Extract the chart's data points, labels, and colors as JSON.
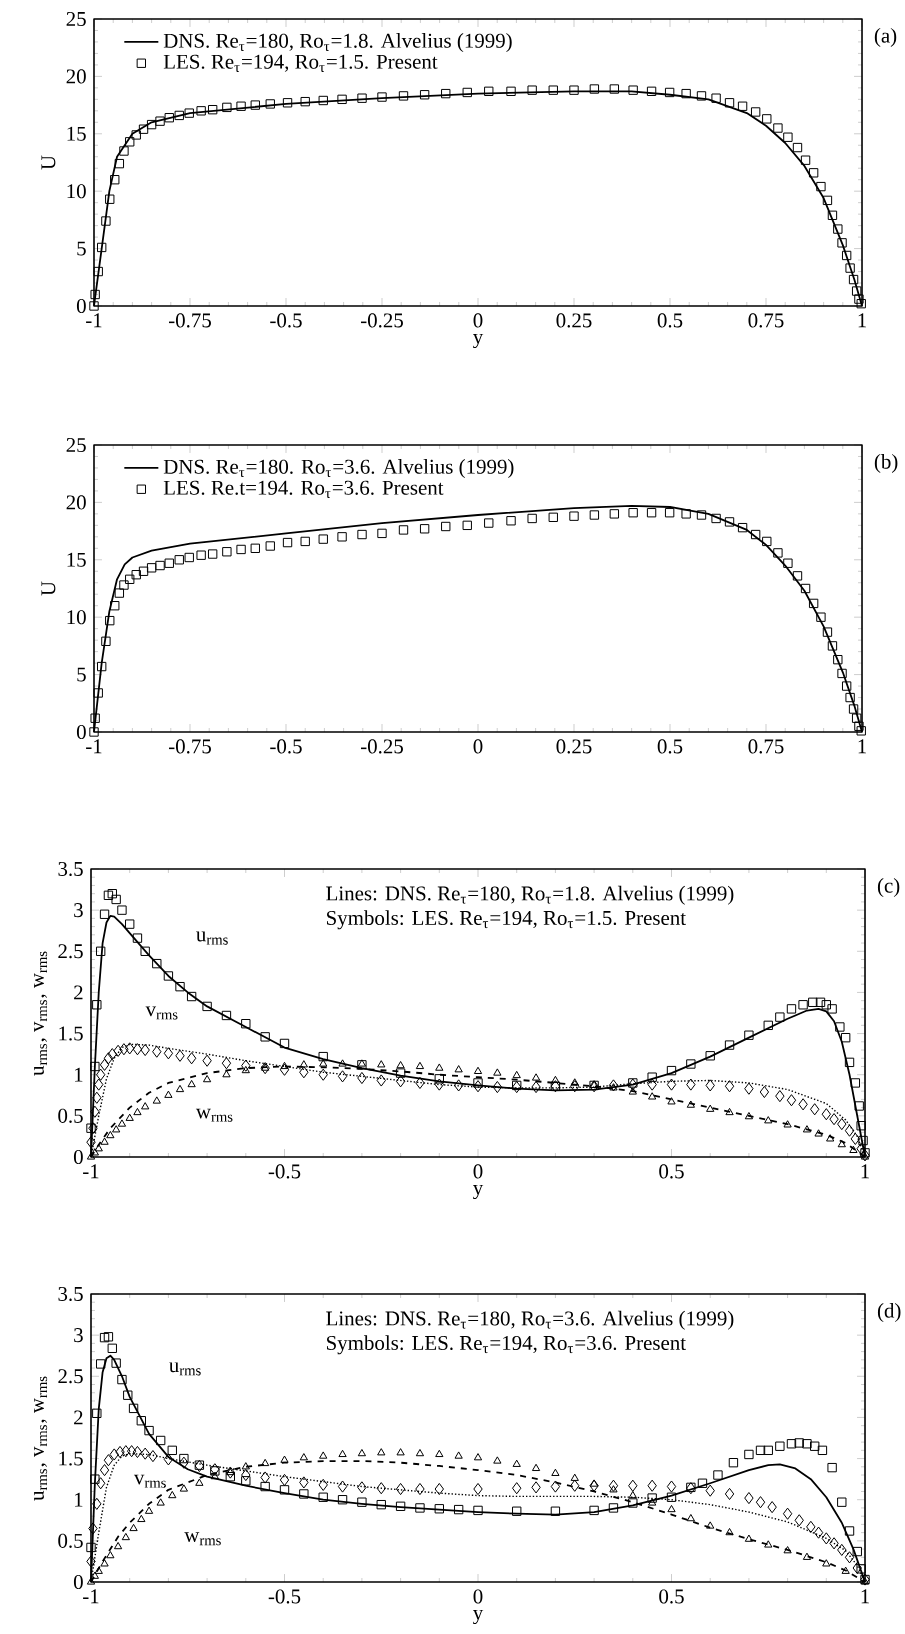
{
  "chart_data": [
    {
      "type": "line",
      "title": "(a)",
      "xlabel": "y",
      "ylabel": "U",
      "xlim": [
        -1,
        1
      ],
      "ylim": [
        0,
        25
      ],
      "xticks": [
        -1,
        -0.75,
        -0.5,
        -0.25,
        0,
        0.25,
        0.5,
        0.75,
        1
      ],
      "yticks": [
        0,
        5,
        10,
        15,
        20,
        25
      ],
      "legend": "top left",
      "series": [
        {
          "name": "DNS. Re$_{τ}$=180,  Ro$_{τ}$=1.8. Alvelius (1999)",
          "type": "line",
          "line_style": "solid",
          "marker": "none",
          "color": "#000000",
          "x": [
            -1,
            -0.98,
            -0.96,
            -0.94,
            -0.9,
            -0.85,
            -0.75,
            -0.5,
            -0.25,
            0,
            0.25,
            0.4,
            0.5,
            0.6,
            0.7,
            0.75,
            0.8,
            0.85,
            0.9,
            0.95,
            0.98,
            1
          ],
          "values": [
            0,
            5,
            10,
            13,
            15,
            16,
            16.8,
            17.6,
            18.1,
            18.5,
            18.7,
            18.7,
            18.4,
            18,
            16.8,
            15.7,
            14.2,
            12.2,
            9.4,
            5.3,
            2.3,
            0
          ]
        },
        {
          "name": "LES. Re$_{τ}$=194,  Ro$_{τ}$=1.5. Present",
          "type": "scatter",
          "marker": "square",
          "color": "#000000",
          "x": [
            -1,
            -0.997,
            -0.989,
            -0.98,
            -0.969,
            -0.959,
            -0.946,
            -0.934,
            -0.922,
            -0.907,
            -0.89,
            -0.871,
            -0.85,
            -0.828,
            -0.804,
            -0.778,
            -0.752,
            -0.721,
            -0.691,
            -0.654,
            -0.617,
            -0.58,
            -0.541,
            -0.496,
            -0.45,
            -0.403,
            -0.354,
            -0.302,
            -0.25,
            -0.194,
            -0.139,
            -0.084,
            -0.028,
            0.028,
            0.086,
            0.141,
            0.196,
            0.25,
            0.303,
            0.355,
            0.404,
            0.452,
            0.499,
            0.542,
            0.582,
            0.62,
            0.655,
            0.689,
            0.723,
            0.752,
            0.781,
            0.807,
            0.832,
            0.853,
            0.874,
            0.893,
            0.91,
            0.923,
            0.937,
            0.948,
            0.96,
            0.969,
            0.978,
            0.986,
            0.992,
            0.998
          ],
          "values": [
            0,
            1,
            3,
            5.1,
            7.4,
            9.3,
            11,
            12.4,
            13.5,
            14.3,
            14.9,
            15.4,
            15.8,
            16.1,
            16.4,
            16.6,
            16.8,
            17,
            17.1,
            17.3,
            17.4,
            17.5,
            17.6,
            17.7,
            17.8,
            17.9,
            18,
            18.1,
            18.2,
            18.3,
            18.4,
            18.5,
            18.6,
            18.7,
            18.7,
            18.8,
            18.8,
            18.8,
            18.9,
            18.9,
            18.8,
            18.7,
            18.6,
            18.5,
            18.3,
            18.1,
            17.7,
            17.4,
            16.9,
            16.3,
            15.5,
            14.7,
            13.8,
            12.7,
            11.6,
            10.4,
            9.2,
            7.9,
            6.7,
            5.5,
            4.4,
            3.3,
            2.3,
            1.3,
            0.6,
            0.2
          ]
        }
      ]
    },
    {
      "type": "line",
      "title": "(b)",
      "ylabel": "U",
      "xlim": [
        -1,
        1
      ],
      "ylim": [
        0,
        25
      ],
      "xticks": [
        -1,
        -0.75,
        -0.5,
        -0.25,
        0,
        0.25,
        0.5,
        0.75,
        1
      ],
      "yticks": [
        0,
        5,
        10,
        15,
        20,
        25
      ],
      "legend": "top left",
      "series": [
        {
          "name": "DNS. Re$_{τ}$=180.  Ro$_{τ}$=3.6. Alvelius (1999)",
          "type": "line",
          "line_style": "solid",
          "marker": "none",
          "color": "#000000",
          "x": [
            -1,
            -0.98,
            -0.96,
            -0.94,
            -0.92,
            -0.9,
            -0.85,
            -0.75,
            -0.5,
            -0.25,
            0,
            0.25,
            0.4,
            0.5,
            0.6,
            0.7,
            0.75,
            0.8,
            0.85,
            0.9,
            0.95,
            0.98,
            1
          ],
          "values": [
            0,
            6,
            10.5,
            13.3,
            14.6,
            15.2,
            15.8,
            16.4,
            17.3,
            18.2,
            18.9,
            19.5,
            19.7,
            19.6,
            19,
            17.6,
            16.3,
            14.5,
            12.3,
            9.2,
            5.2,
            2.3,
            0
          ]
        },
        {
          "name": "LES. Re.t=194. Ro$_{τ}$=3.6. Present",
          "type": "scatter",
          "marker": "square",
          "color": "#000000",
          "x": [
            -1,
            -0.997,
            -0.989,
            -0.98,
            -0.969,
            -0.959,
            -0.946,
            -0.934,
            -0.922,
            -0.907,
            -0.89,
            -0.871,
            -0.85,
            -0.828,
            -0.804,
            -0.778,
            -0.752,
            -0.721,
            -0.691,
            -0.654,
            -0.617,
            -0.58,
            -0.541,
            -0.496,
            -0.45,
            -0.403,
            -0.354,
            -0.302,
            -0.25,
            -0.194,
            -0.139,
            -0.084,
            -0.028,
            0.028,
            0.086,
            0.141,
            0.196,
            0.25,
            0.303,
            0.355,
            0.404,
            0.452,
            0.499,
            0.542,
            0.582,
            0.62,
            0.655,
            0.689,
            0.723,
            0.752,
            0.781,
            0.807,
            0.832,
            0.853,
            0.874,
            0.893,
            0.91,
            0.923,
            0.937,
            0.948,
            0.96,
            0.969,
            0.978,
            0.986,
            0.992,
            0.998
          ],
          "values": [
            0,
            1.2,
            3.4,
            5.7,
            7.9,
            9.7,
            11,
            12.1,
            12.8,
            13.3,
            13.7,
            14,
            14.3,
            14.5,
            14.7,
            15,
            15.2,
            15.4,
            15.5,
            15.7,
            15.9,
            16,
            16.2,
            16.5,
            16.6,
            16.8,
            17,
            17.2,
            17.3,
            17.6,
            17.7,
            17.9,
            18,
            18.2,
            18.4,
            18.6,
            18.7,
            18.8,
            18.9,
            19,
            19.1,
            19.1,
            19.1,
            19,
            18.9,
            18.6,
            18.3,
            17.8,
            17.2,
            16.6,
            15.6,
            14.7,
            13.6,
            12.5,
            11.2,
            10,
            8.7,
            7.5,
            6.3,
            5.1,
            4,
            3,
            2,
            1.2,
            0.5,
            0.1
          ]
        }
      ]
    },
    {
      "type": "line",
      "title": "(c)",
      "xlabel": "y",
      "ylabel": "u$_{rms}$, v$_{rms}$, w$_{rms}$",
      "xlim": [
        -1,
        1
      ],
      "ylim": [
        0,
        3.5
      ],
      "xticks": [
        -1,
        -0.5,
        0,
        0.5,
        1
      ],
      "yticks": [
        0,
        0.5,
        1,
        1.5,
        2,
        2.5,
        3,
        3.5
      ],
      "annotations": [
        "Lines: DNS. Re$_{τ}$=180, Ro$_{τ}$=1.8.  Alvelius (1999)",
        "Symbols: LES. Re$_{τ}$=194, Ro$_{τ}$=1.5. Present",
        "u$_{rms}$",
        "v$_{rms}$",
        "w$_{rms}$"
      ],
      "series": [
        {
          "type": "line",
          "line_style": "solid",
          "marker": "none",
          "color": "#000000",
          "x": [
            -1,
            -0.99,
            -0.98,
            -0.97,
            -0.96,
            -0.95,
            -0.94,
            -0.92,
            -0.9,
            -0.85,
            -0.8,
            -0.75,
            -0.7,
            -0.6,
            -0.5,
            -0.4,
            -0.3,
            -0.2,
            -0.1,
            0,
            0.1,
            0.2,
            0.3,
            0.4,
            0.5,
            0.6,
            0.7,
            0.8,
            0.85,
            0.88,
            0.9,
            0.92,
            0.94,
            0.96,
            0.98,
            1
          ],
          "values": [
            0,
            1.1,
            2,
            2.6,
            2.85,
            2.93,
            2.92,
            2.83,
            2.72,
            2.45,
            2.2,
            2,
            1.83,
            1.58,
            1.33,
            1.19,
            1.08,
            0.99,
            0.92,
            0.87,
            0.83,
            0.81,
            0.82,
            0.88,
            1.02,
            1.22,
            1.45,
            1.68,
            1.78,
            1.8,
            1.77,
            1.65,
            1.4,
            1,
            0.5,
            0
          ]
        },
        {
          "type": "line",
          "line_style": "dotted",
          "marker": "none",
          "color": "#000000",
          "x": [
            -1,
            -0.98,
            -0.96,
            -0.94,
            -0.92,
            -0.9,
            -0.85,
            -0.8,
            -0.7,
            -0.6,
            -0.5,
            -0.4,
            -0.3,
            -0.2,
            -0.1,
            0,
            0.1,
            0.2,
            0.3,
            0.4,
            0.5,
            0.6,
            0.7,
            0.8,
            0.9,
            0.95,
            0.98,
            1
          ],
          "values": [
            0,
            0.5,
            0.95,
            1.2,
            1.33,
            1.37,
            1.36,
            1.32,
            1.25,
            1.17,
            1.1,
            1.03,
            0.98,
            0.93,
            0.88,
            0.85,
            0.84,
            0.84,
            0.85,
            0.89,
            0.92,
            0.93,
            0.9,
            0.82,
            0.65,
            0.45,
            0.25,
            0
          ]
        },
        {
          "type": "line",
          "line_style": "dashed",
          "marker": "none",
          "color": "#000000",
          "x": [
            -1,
            -0.98,
            -0.95,
            -0.9,
            -0.85,
            -0.8,
            -0.7,
            -0.6,
            -0.5,
            -0.4,
            -0.3,
            -0.2,
            -0.1,
            0,
            0.1,
            0.2,
            0.3,
            0.4,
            0.5,
            0.6,
            0.7,
            0.8,
            0.9,
            0.95,
            1
          ],
          "values": [
            0,
            0.15,
            0.35,
            0.6,
            0.78,
            0.9,
            1.02,
            1.08,
            1.1,
            1.09,
            1.07,
            1.04,
            1,
            0.97,
            0.94,
            0.9,
            0.86,
            0.8,
            0.7,
            0.6,
            0.5,
            0.4,
            0.27,
            0.17,
            0
          ]
        },
        {
          "type": "scatter",
          "marker": "square",
          "color": "#000000",
          "x": [
            -1,
            -0.99,
            -0.985,
            -0.975,
            -0.965,
            -0.955,
            -0.945,
            -0.935,
            -0.92,
            -0.9,
            -0.88,
            -0.86,
            -0.83,
            -0.8,
            -0.77,
            -0.74,
            -0.7,
            -0.65,
            -0.6,
            -0.55,
            -0.5,
            -0.4,
            -0.3,
            -0.2,
            -0.1,
            0,
            0.1,
            0.2,
            0.3,
            0.4,
            0.45,
            0.5,
            0.55,
            0.6,
            0.65,
            0.7,
            0.75,
            0.78,
            0.81,
            0.84,
            0.865,
            0.885,
            0.9,
            0.915,
            0.935,
            0.95,
            0.96,
            0.975,
            0.985,
            0.99,
            0.995,
            1
          ],
          "values": [
            0.35,
            1.1,
            1.85,
            2.5,
            2.95,
            3.18,
            3.2,
            3.13,
            3,
            2.83,
            2.66,
            2.5,
            2.35,
            2.2,
            2.07,
            1.95,
            1.83,
            1.72,
            1.62,
            1.46,
            1.38,
            1.22,
            1.12,
            1.02,
            0.95,
            0.9,
            0.87,
            0.86,
            0.87,
            0.9,
            0.97,
            1.05,
            1.13,
            1.23,
            1.36,
            1.48,
            1.6,
            1.7,
            1.8,
            1.85,
            1.88,
            1.88,
            1.85,
            1.8,
            1.58,
            1.45,
            1.15,
            0.9,
            0.62,
            0.38,
            0.2,
            0.05
          ]
        },
        {
          "type": "scatter",
          "marker": "diamond",
          "color": "#000000",
          "x": [
            -1,
            -0.995,
            -0.99,
            -0.985,
            -0.98,
            -0.975,
            -0.965,
            -0.955,
            -0.945,
            -0.93,
            -0.915,
            -0.9,
            -0.88,
            -0.86,
            -0.83,
            -0.8,
            -0.77,
            -0.74,
            -0.7,
            -0.65,
            -0.6,
            -0.55,
            -0.5,
            -0.45,
            -0.4,
            -0.35,
            -0.3,
            -0.25,
            -0.2,
            -0.15,
            -0.1,
            -0.05,
            0,
            0.05,
            0.1,
            0.15,
            0.2,
            0.25,
            0.3,
            0.35,
            0.4,
            0.45,
            0.5,
            0.55,
            0.6,
            0.65,
            0.7,
            0.74,
            0.78,
            0.81,
            0.84,
            0.87,
            0.9,
            0.92,
            0.94,
            0.96,
            0.975,
            0.99,
            1
          ],
          "values": [
            0.18,
            0.35,
            0.55,
            0.72,
            0.88,
            1,
            1.12,
            1.2,
            1.25,
            1.29,
            1.31,
            1.32,
            1.31,
            1.3,
            1.28,
            1.26,
            1.23,
            1.2,
            1.17,
            1.14,
            1.11,
            1.08,
            1.06,
            1.03,
            1,
            0.98,
            0.96,
            0.93,
            0.92,
            0.9,
            0.88,
            0.87,
            0.86,
            0.85,
            0.85,
            0.85,
            0.86,
            0.86,
            0.86,
            0.87,
            0.88,
            0.88,
            0.88,
            0.88,
            0.87,
            0.86,
            0.83,
            0.79,
            0.74,
            0.69,
            0.64,
            0.58,
            0.52,
            0.46,
            0.4,
            0.32,
            0.22,
            0.1,
            0.02
          ]
        },
        {
          "type": "scatter",
          "marker": "triangle",
          "color": "#000000",
          "x": [
            -1,
            -0.99,
            -0.98,
            -0.965,
            -0.95,
            -0.935,
            -0.92,
            -0.9,
            -0.88,
            -0.86,
            -0.83,
            -0.8,
            -0.77,
            -0.74,
            -0.7,
            -0.65,
            -0.6,
            -0.55,
            -0.5,
            -0.45,
            -0.4,
            -0.35,
            -0.3,
            -0.25,
            -0.2,
            -0.15,
            -0.1,
            -0.05,
            0,
            0.05,
            0.1,
            0.15,
            0.2,
            0.25,
            0.3,
            0.35,
            0.4,
            0.45,
            0.5,
            0.55,
            0.6,
            0.65,
            0.7,
            0.75,
            0.8,
            0.85,
            0.88,
            0.91,
            0.94,
            0.97,
            1
          ],
          "values": [
            0,
            0.05,
            0.1,
            0.18,
            0.26,
            0.33,
            0.4,
            0.47,
            0.54,
            0.61,
            0.68,
            0.75,
            0.82,
            0.88,
            0.94,
            1,
            1.05,
            1.08,
            1.1,
            1.12,
            1.13,
            1.13,
            1.13,
            1.12,
            1.11,
            1.1,
            1.08,
            1.06,
            1.04,
            1.02,
            0.99,
            0.96,
            0.93,
            0.9,
            0.87,
            0.84,
            0.79,
            0.73,
            0.67,
            0.63,
            0.58,
            0.54,
            0.49,
            0.44,
            0.39,
            0.33,
            0.28,
            0.22,
            0.15,
            0.08,
            0
          ]
        }
      ]
    },
    {
      "type": "line",
      "title": "(d)",
      "xlabel": "y",
      "ylabel": "u$_{rms}$, v$_{rms}$, w$_{rms}$",
      "xlim": [
        -1,
        1
      ],
      "ylim": [
        0,
        3.5
      ],
      "xticks": [
        -1,
        -0.5,
        0,
        0.5,
        1
      ],
      "yticks": [
        0,
        0.5,
        1,
        1.5,
        2,
        2.5,
        3,
        3.5
      ],
      "annotations": [
        "Lines: DNS. Re$_{τ}$=180, Ro$_{τ}$=3.6. Alvelius (1999)",
        "Symbols: LES. Re$_{τ}$=194, Ro$_{τ}$=3.6. Present",
        "u$_{rms}$",
        "v$_{rms}$",
        "w$_{rms}$"
      ],
      "series": [
        {
          "type": "line",
          "line_style": "solid",
          "marker": "none",
          "color": "#000000",
          "x": [
            -1,
            -0.99,
            -0.98,
            -0.97,
            -0.96,
            -0.95,
            -0.94,
            -0.92,
            -0.9,
            -0.85,
            -0.8,
            -0.75,
            -0.7,
            -0.6,
            -0.5,
            -0.4,
            -0.3,
            -0.2,
            -0.1,
            0,
            0.1,
            0.2,
            0.3,
            0.4,
            0.5,
            0.6,
            0.7,
            0.75,
            0.78,
            0.82,
            0.86,
            0.9,
            0.94,
            0.97,
            1
          ],
          "values": [
            0,
            1.2,
            2.1,
            2.55,
            2.72,
            2.75,
            2.7,
            2.5,
            2.25,
            1.8,
            1.52,
            1.37,
            1.28,
            1.17,
            1.08,
            1,
            0.95,
            0.91,
            0.88,
            0.85,
            0.83,
            0.82,
            0.85,
            0.93,
            1.05,
            1.2,
            1.36,
            1.42,
            1.43,
            1.38,
            1.25,
            1.03,
            0.72,
            0.4,
            0
          ]
        },
        {
          "type": "line",
          "line_style": "dotted",
          "marker": "none",
          "color": "#000000",
          "x": [
            -1,
            -0.98,
            -0.96,
            -0.94,
            -0.92,
            -0.9,
            -0.85,
            -0.8,
            -0.7,
            -0.6,
            -0.5,
            -0.4,
            -0.3,
            -0.2,
            -0.1,
            0,
            0.1,
            0.2,
            0.3,
            0.4,
            0.5,
            0.6,
            0.7,
            0.8,
            0.9,
            0.95,
            0.98,
            1
          ],
          "values": [
            0,
            0.6,
            1.15,
            1.42,
            1.53,
            1.56,
            1.55,
            1.5,
            1.42,
            1.35,
            1.28,
            1.22,
            1.16,
            1.12,
            1.08,
            1.05,
            1.04,
            1.04,
            1.04,
            1.03,
            1,
            0.94,
            0.85,
            0.73,
            0.53,
            0.38,
            0.2,
            0
          ]
        },
        {
          "type": "line",
          "line_style": "dashed",
          "marker": "none",
          "color": "#000000",
          "x": [
            -1,
            -0.97,
            -0.93,
            -0.9,
            -0.85,
            -0.8,
            -0.7,
            -0.6,
            -0.5,
            -0.4,
            -0.3,
            -0.2,
            -0.1,
            0,
            0.1,
            0.2,
            0.3,
            0.4,
            0.5,
            0.6,
            0.7,
            0.8,
            0.9,
            0.95,
            1
          ],
          "values": [
            0,
            0.25,
            0.55,
            0.72,
            0.95,
            1.12,
            1.3,
            1.4,
            1.45,
            1.47,
            1.47,
            1.45,
            1.41,
            1.36,
            1.3,
            1.21,
            1.1,
            0.97,
            0.82,
            0.66,
            0.52,
            0.39,
            0.24,
            0.14,
            0
          ]
        },
        {
          "type": "scatter",
          "marker": "square",
          "color": "#000000",
          "x": [
            -1,
            -0.99,
            -0.985,
            -0.975,
            -0.965,
            -0.955,
            -0.945,
            -0.935,
            -0.92,
            -0.905,
            -0.89,
            -0.87,
            -0.85,
            -0.82,
            -0.79,
            -0.76,
            -0.72,
            -0.68,
            -0.64,
            -0.6,
            -0.55,
            -0.5,
            -0.45,
            -0.4,
            -0.35,
            -0.3,
            -0.25,
            -0.2,
            -0.15,
            -0.1,
            -0.05,
            0,
            0.1,
            0.2,
            0.3,
            0.35,
            0.4,
            0.45,
            0.5,
            0.55,
            0.58,
            0.62,
            0.66,
            0.7,
            0.73,
            0.75,
            0.78,
            0.81,
            0.83,
            0.85,
            0.87,
            0.89,
            0.915,
            0.94,
            0.96,
            0.98,
            0.99,
            1
          ],
          "values": [
            0.42,
            1.25,
            2.05,
            2.65,
            2.97,
            2.98,
            2.84,
            2.66,
            2.46,
            2.27,
            2.11,
            1.96,
            1.84,
            1.72,
            1.6,
            1.5,
            1.42,
            1.35,
            1.28,
            1.23,
            1.16,
            1.12,
            1.07,
            1.03,
            1,
            0.97,
            0.94,
            0.92,
            0.9,
            0.89,
            0.88,
            0.87,
            0.86,
            0.86,
            0.87,
            0.9,
            0.96,
            1.02,
            1.03,
            1.15,
            1.2,
            1.3,
            1.45,
            1.55,
            1.6,
            1.6,
            1.65,
            1.68,
            1.69,
            1.68,
            1.65,
            1.6,
            1.39,
            0.97,
            0.62,
            0.37,
            0.16,
            0.03
          ]
        },
        {
          "type": "scatter",
          "marker": "diamond",
          "color": "#000000",
          "x": [
            -1,
            -0.995,
            -0.985,
            -0.975,
            -0.965,
            -0.955,
            -0.94,
            -0.925,
            -0.91,
            -0.895,
            -0.88,
            -0.86,
            -0.84,
            -0.8,
            -0.76,
            -0.72,
            -0.68,
            -0.64,
            -0.6,
            -0.55,
            -0.5,
            -0.45,
            -0.4,
            -0.35,
            -0.3,
            -0.25,
            -0.2,
            -0.15,
            -0.1,
            0,
            0.1,
            0.15,
            0.2,
            0.25,
            0.3,
            0.35,
            0.4,
            0.45,
            0.5,
            0.55,
            0.6,
            0.65,
            0.7,
            0.73,
            0.76,
            0.8,
            0.83,
            0.86,
            0.88,
            0.9,
            0.92,
            0.94,
            0.96,
            0.98,
            1
          ],
          "values": [
            0.25,
            0.65,
            0.95,
            1.2,
            1.36,
            1.48,
            1.55,
            1.58,
            1.59,
            1.59,
            1.58,
            1.56,
            1.53,
            1.49,
            1.45,
            1.41,
            1.37,
            1.33,
            1.3,
            1.27,
            1.24,
            1.21,
            1.18,
            1.16,
            1.15,
            1.14,
            1.13,
            1.13,
            1.13,
            1.13,
            1.14,
            1.15,
            1.16,
            1.17,
            1.17,
            1.17,
            1.17,
            1.17,
            1.16,
            1.14,
            1.11,
            1.07,
            1.02,
            0.97,
            0.91,
            0.83,
            0.75,
            0.67,
            0.6,
            0.53,
            0.47,
            0.39,
            0.3,
            0.17,
            0.03
          ]
        },
        {
          "type": "scatter",
          "marker": "triangle",
          "color": "#000000",
          "x": [
            -1,
            -0.99,
            -0.98,
            -0.965,
            -0.95,
            -0.93,
            -0.91,
            -0.89,
            -0.87,
            -0.85,
            -0.82,
            -0.79,
            -0.76,
            -0.72,
            -0.68,
            -0.64,
            -0.6,
            -0.55,
            -0.5,
            -0.45,
            -0.4,
            -0.35,
            -0.3,
            -0.25,
            -0.2,
            -0.15,
            -0.1,
            -0.05,
            0,
            0.05,
            0.1,
            0.15,
            0.2,
            0.25,
            0.3,
            0.35,
            0.4,
            0.45,
            0.5,
            0.55,
            0.6,
            0.65,
            0.7,
            0.75,
            0.8,
            0.85,
            0.9,
            0.95,
            1
          ],
          "values": [
            0,
            0.07,
            0.13,
            0.22,
            0.32,
            0.43,
            0.54,
            0.65,
            0.76,
            0.86,
            0.96,
            1.05,
            1.13,
            1.2,
            1.28,
            1.33,
            1.4,
            1.44,
            1.48,
            1.51,
            1.53,
            1.55,
            1.56,
            1.57,
            1.57,
            1.56,
            1.55,
            1.53,
            1.51,
            1.47,
            1.43,
            1.38,
            1.32,
            1.26,
            1.19,
            1.12,
            1.05,
            0.96,
            0.88,
            0.77,
            0.68,
            0.6,
            0.52,
            0.45,
            0.38,
            0.3,
            0.22,
            0.13,
            0
          ]
        }
      ]
    }
  ]
}
